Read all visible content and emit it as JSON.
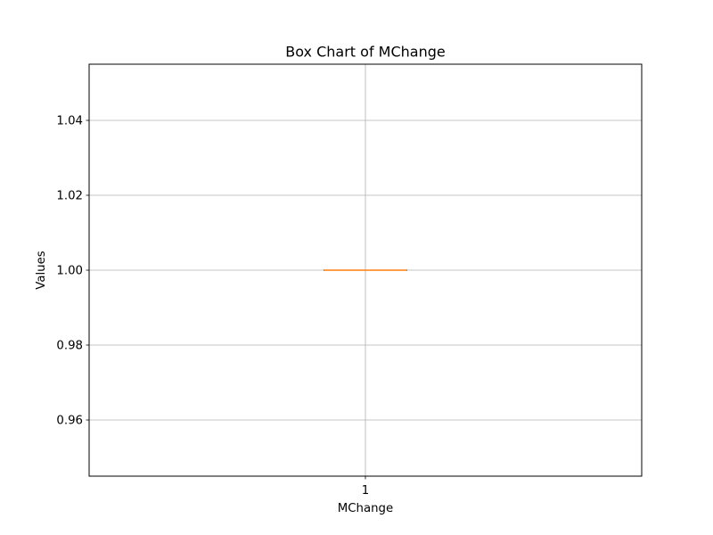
{
  "chart_data": {
    "type": "box",
    "title": "Box Chart of MChange",
    "xlabel": "MChange",
    "ylabel": "Values",
    "categories": [
      "1"
    ],
    "ylim": [
      0.945,
      1.055
    ],
    "yticks": [
      "0.96",
      "0.98",
      "1.00",
      "1.02",
      "1.04"
    ],
    "grid": true,
    "series": [
      {
        "min": 1.0,
        "q1": 1.0,
        "median": 1.0,
        "q3": 1.0,
        "max": 1.0
      }
    ],
    "colors": {
      "box": "#000000",
      "median": "#ff7f0e",
      "grid": "#b0b0b0",
      "axes": "#000000"
    }
  }
}
